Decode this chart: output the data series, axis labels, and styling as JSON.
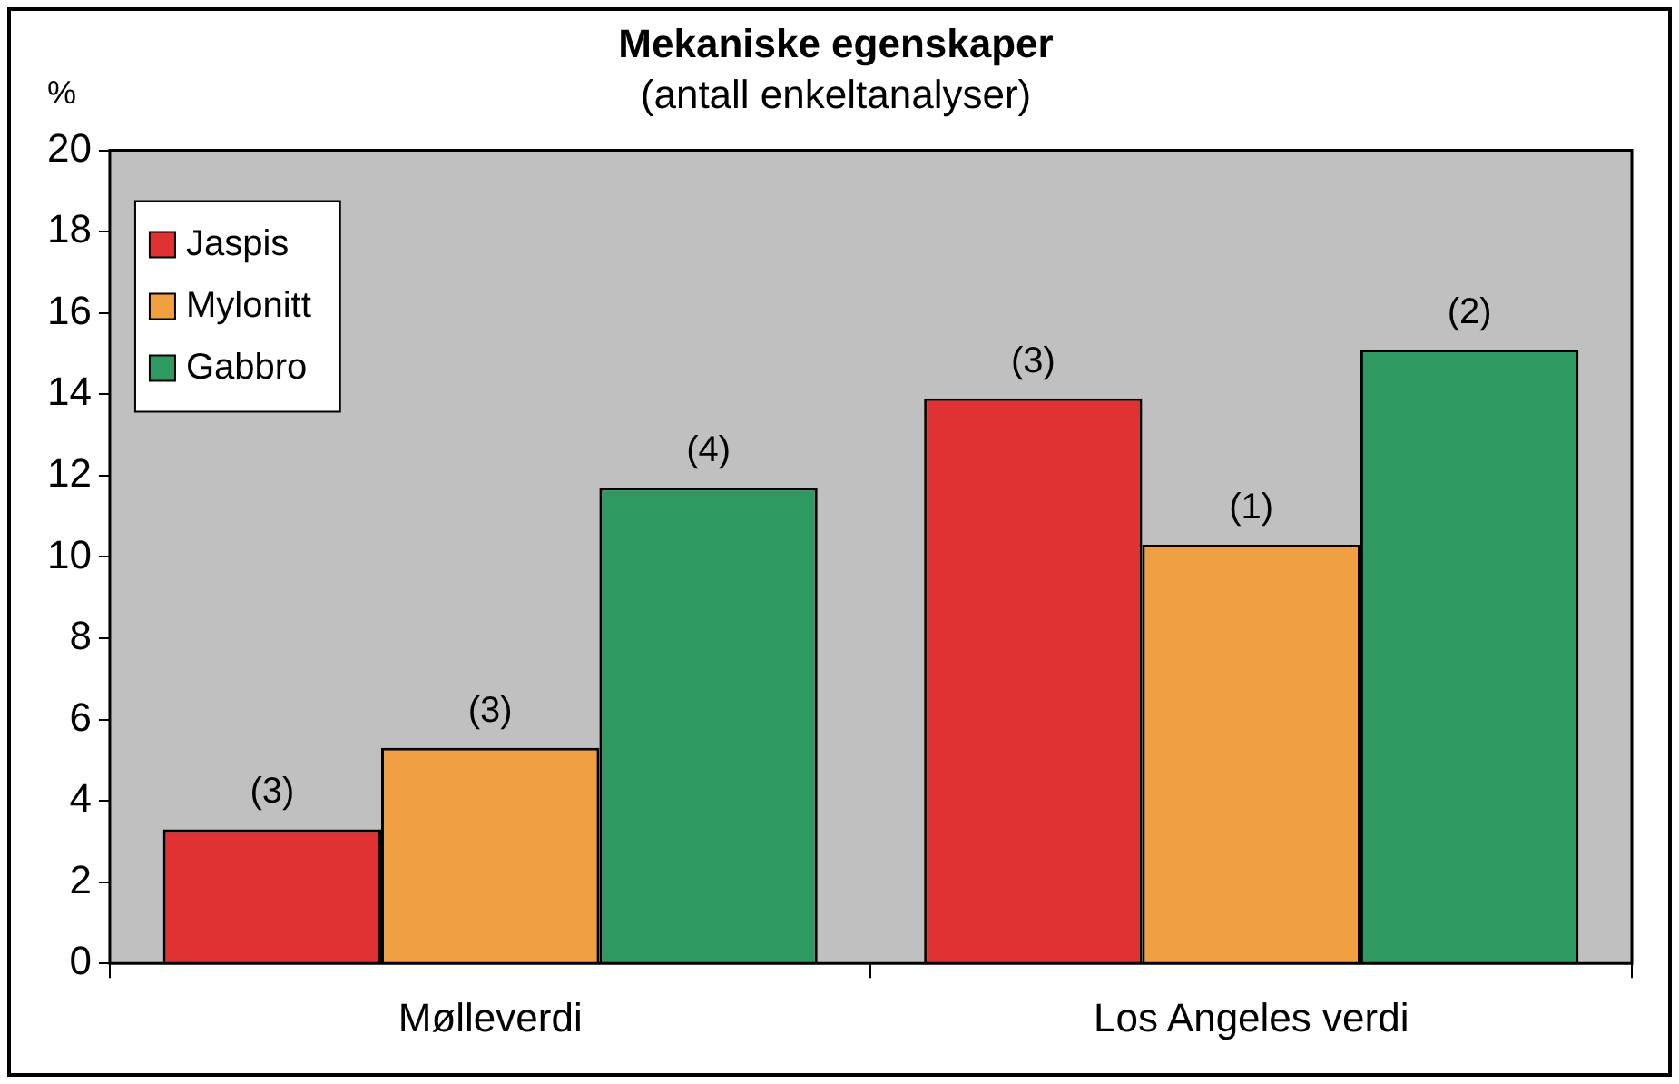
{
  "chart_data": {
    "type": "bar",
    "title": "Mekaniske egenskaper",
    "subtitle": "(antall enkeltanalyser)",
    "ylabel": "%",
    "categories": [
      "Mølleverdi",
      "Los Angeles verdi"
    ],
    "series": [
      {
        "name": "Jaspis",
        "color": "#e03232",
        "values": [
          3.3,
          13.9
        ]
      },
      {
        "name": "Mylonitt",
        "color": "#f0a040",
        "values": [
          5.3,
          10.3
        ]
      },
      {
        "name": "Gabbro",
        "color": "#2e9a62",
        "values": [
          11.7,
          15.1
        ]
      }
    ],
    "annotations": [
      "(3)",
      "(3)",
      "(4)",
      "(3)",
      "(1)",
      "(2)"
    ],
    "ylim": [
      0,
      20
    ],
    "yticks": [
      0,
      2,
      4,
      6,
      8,
      10,
      12,
      14,
      16,
      18,
      20
    ],
    "grid": false,
    "legend": "top left"
  }
}
